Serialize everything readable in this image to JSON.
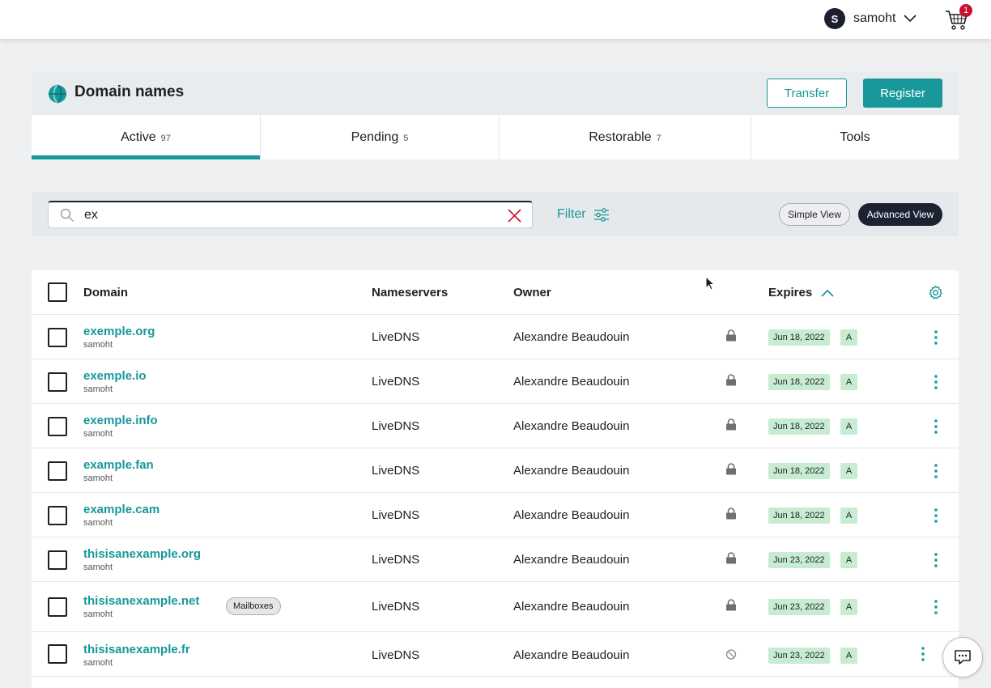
{
  "header": {
    "user": {
      "initial": "S",
      "name": "samoht"
    },
    "cart": {
      "count": "1"
    }
  },
  "panel": {
    "title": "Domain names",
    "transfer_label": "Transfer",
    "register_label": "Register"
  },
  "tabs": [
    {
      "label": "Active",
      "count": "97",
      "active": true
    },
    {
      "label": "Pending",
      "count": "5",
      "active": false
    },
    {
      "label": "Restorable",
      "count": "7",
      "active": false
    },
    {
      "label": "Tools",
      "count": "",
      "active": false
    }
  ],
  "search": {
    "value": "ex",
    "filter_label": "Filter",
    "simple_view_label": "Simple View",
    "advanced_view_label": "Advanced View"
  },
  "table": {
    "columns": {
      "domain": "Domain",
      "nameservers": "Nameservers",
      "owner": "Owner",
      "expires": "Expires"
    },
    "rows": [
      {
        "domain": "exemple.org",
        "account": "samoht",
        "nameservers": "LiveDNS",
        "owner": "Alexandre Beaudouin",
        "status_icon": "lock-icon",
        "expires": "Jun 18, 2022",
        "renew": "A",
        "badge": ""
      },
      {
        "domain": "exemple.io",
        "account": "samoht",
        "nameservers": "LiveDNS",
        "owner": "Alexandre Beaudouin",
        "status_icon": "lock-icon",
        "expires": "Jun 18, 2022",
        "renew": "A",
        "badge": ""
      },
      {
        "domain": "exemple.info",
        "account": "samoht",
        "nameservers": "LiveDNS",
        "owner": "Alexandre Beaudouin",
        "status_icon": "lock-icon",
        "expires": "Jun 18, 2022",
        "renew": "A",
        "badge": ""
      },
      {
        "domain": "example.fan",
        "account": "samoht",
        "nameservers": "LiveDNS",
        "owner": "Alexandre Beaudouin",
        "status_icon": "lock-icon",
        "expires": "Jun 18, 2022",
        "renew": "A",
        "badge": ""
      },
      {
        "domain": "example.cam",
        "account": "samoht",
        "nameservers": "LiveDNS",
        "owner": "Alexandre Beaudouin",
        "status_icon": "lock-icon",
        "expires": "Jun 18, 2022",
        "renew": "A",
        "badge": ""
      },
      {
        "domain": "thisisanexample.org",
        "account": "samoht",
        "nameservers": "LiveDNS",
        "owner": "Alexandre Beaudouin",
        "status_icon": "lock-icon",
        "expires": "Jun 23, 2022",
        "renew": "A",
        "badge": ""
      },
      {
        "domain": "thisisanexample.net",
        "account": "samoht",
        "nameservers": "LiveDNS",
        "owner": "Alexandre Beaudouin",
        "status_icon": "lock-icon",
        "expires": "Jun 23, 2022",
        "renew": "A",
        "badge": "Mailboxes"
      },
      {
        "domain": "thisisanexample.fr",
        "account": "samoht",
        "nameservers": "LiveDNS",
        "owner": "Alexandre Beaudouin",
        "status_icon": "unlocked-icon",
        "expires": "Jun 23, 2022",
        "renew": "A",
        "badge": ""
      }
    ]
  },
  "colors": {
    "accent": "#18989b",
    "dark": "#1c2232",
    "expires_badge": "#c7ecd2",
    "cart_badge": "#c8102e"
  }
}
